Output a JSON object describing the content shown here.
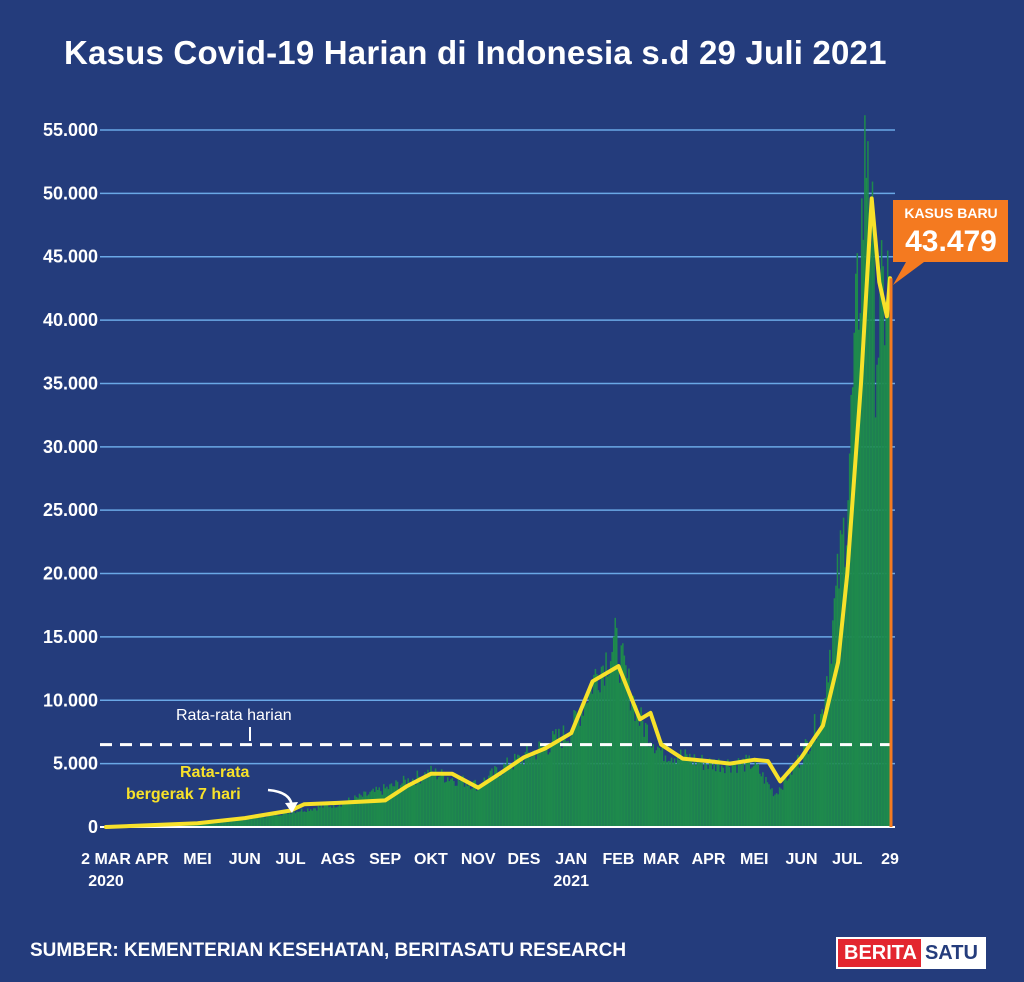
{
  "chart_data": {
    "type": "bar",
    "title": "Kasus Covid-19 Harian di Indonesia s.d 29 Juli 2021",
    "xlabel": "",
    "ylabel": "",
    "ylim": [
      0,
      55000
    ],
    "yticks": [
      "0",
      "5.000",
      "10.000",
      "15.000",
      "20.000",
      "25.000",
      "30.000",
      "35.000",
      "40.000",
      "45.000",
      "50.000",
      "55.000"
    ],
    "grid": true,
    "xticks": [
      {
        "label": "2 MAR",
        "sub": "2020",
        "date": "2020-03-02"
      },
      {
        "label": "APR",
        "sub": "",
        "date": "2020-04-01"
      },
      {
        "label": "MEI",
        "sub": "",
        "date": "2020-05-01"
      },
      {
        "label": "JUN",
        "sub": "",
        "date": "2020-06-01"
      },
      {
        "label": "JUL",
        "sub": "",
        "date": "2020-07-01"
      },
      {
        "label": "AGS",
        "sub": "",
        "date": "2020-08-01"
      },
      {
        "label": "SEP",
        "sub": "",
        "date": "2020-09-01"
      },
      {
        "label": "OKT",
        "sub": "",
        "date": "2020-10-01"
      },
      {
        "label": "NOV",
        "sub": "",
        "date": "2020-11-01"
      },
      {
        "label": "DES",
        "sub": "",
        "date": "2020-12-01"
      },
      {
        "label": "JAN",
        "sub": "2021",
        "date": "2021-01-01"
      },
      {
        "label": "FEB",
        "sub": "",
        "date": "2021-02-01"
      },
      {
        "label": "MAR",
        "sub": "",
        "date": "2021-03-01"
      },
      {
        "label": "APR",
        "sub": "",
        "date": "2021-04-01"
      },
      {
        "label": "MEI",
        "sub": "",
        "date": "2021-05-01"
      },
      {
        "label": "JUN",
        "sub": "",
        "date": "2021-06-01"
      },
      {
        "label": "JUL",
        "sub": "",
        "date": "2021-07-01"
      },
      {
        "label": "29",
        "sub": "",
        "date": "2021-07-29"
      }
    ],
    "x_range": [
      "2020-03-02",
      "2021-07-29"
    ],
    "series": [
      {
        "type": "bar",
        "note": "daily new cases, estimated at key dates",
        "points": [
          {
            "date": "2020-03-02",
            "y": 2
          },
          {
            "date": "2020-04-01",
            "y": 150
          },
          {
            "date": "2020-05-01",
            "y": 350
          },
          {
            "date": "2020-06-01",
            "y": 600
          },
          {
            "date": "2020-07-01",
            "y": 1200
          },
          {
            "date": "2020-08-01",
            "y": 1800
          },
          {
            "date": "2020-09-01",
            "y": 3000
          },
          {
            "date": "2020-10-01",
            "y": 4300
          },
          {
            "date": "2020-11-01",
            "y": 3300
          },
          {
            "date": "2020-11-15",
            "y": 4500
          },
          {
            "date": "2020-12-01",
            "y": 5500
          },
          {
            "date": "2021-01-01",
            "y": 7500
          },
          {
            "date": "2021-01-15",
            "y": 11500
          },
          {
            "date": "2021-01-30",
            "y": 14500
          },
          {
            "date": "2021-02-15",
            "y": 8500
          },
          {
            "date": "2021-03-01",
            "y": 6000
          },
          {
            "date": "2021-04-01",
            "y": 5000
          },
          {
            "date": "2021-05-01",
            "y": 5000
          },
          {
            "date": "2021-05-15",
            "y": 2600
          },
          {
            "date": "2021-06-01",
            "y": 5500
          },
          {
            "date": "2021-06-15",
            "y": 9000
          },
          {
            "date": "2021-07-01",
            "y": 25000
          },
          {
            "date": "2021-07-15",
            "y": 56000
          },
          {
            "date": "2021-07-20",
            "y": 38000
          },
          {
            "date": "2021-07-29",
            "y": 43479
          }
        ]
      },
      {
        "name": "Rata-rata bergerak 7 hari",
        "type": "line",
        "color": "#f7e12a",
        "points": [
          {
            "date": "2020-03-02",
            "y": 0
          },
          {
            "date": "2020-04-01",
            "y": 150
          },
          {
            "date": "2020-05-01",
            "y": 300
          },
          {
            "date": "2020-06-01",
            "y": 700
          },
          {
            "date": "2020-07-01",
            "y": 1300
          },
          {
            "date": "2020-07-10",
            "y": 1800
          },
          {
            "date": "2020-08-01",
            "y": 1900
          },
          {
            "date": "2020-09-01",
            "y": 2100
          },
          {
            "date": "2020-09-15",
            "y": 3200
          },
          {
            "date": "2020-10-01",
            "y": 4200
          },
          {
            "date": "2020-10-15",
            "y": 4200
          },
          {
            "date": "2020-11-01",
            "y": 3100
          },
          {
            "date": "2020-11-15",
            "y": 4200
          },
          {
            "date": "2020-12-01",
            "y": 5500
          },
          {
            "date": "2020-12-15",
            "y": 6200
          },
          {
            "date": "2021-01-01",
            "y": 7400
          },
          {
            "date": "2021-01-15",
            "y": 11500
          },
          {
            "date": "2021-02-01",
            "y": 12700
          },
          {
            "date": "2021-02-15",
            "y": 8500
          },
          {
            "date": "2021-02-22",
            "y": 9000
          },
          {
            "date": "2021-03-01",
            "y": 6500
          },
          {
            "date": "2021-03-15",
            "y": 5400
          },
          {
            "date": "2021-04-01",
            "y": 5200
          },
          {
            "date": "2021-04-15",
            "y": 5000
          },
          {
            "date": "2021-05-01",
            "y": 5300
          },
          {
            "date": "2021-05-10",
            "y": 5200
          },
          {
            "date": "2021-05-18",
            "y": 3600
          },
          {
            "date": "2021-06-01",
            "y": 5500
          },
          {
            "date": "2021-06-15",
            "y": 8000
          },
          {
            "date": "2021-06-25",
            "y": 13000
          },
          {
            "date": "2021-07-01",
            "y": 20000
          },
          {
            "date": "2021-07-10",
            "y": 35000
          },
          {
            "date": "2021-07-17",
            "y": 49600
          },
          {
            "date": "2021-07-22",
            "y": 43000
          },
          {
            "date": "2021-07-27",
            "y": 40300
          },
          {
            "date": "2021-07-29",
            "y": 43300
          }
        ]
      }
    ],
    "reference_line": {
      "label": "Rata-rata harian",
      "y": 6500
    },
    "annotations": {
      "moving_average_label_line1": "Rata-rata",
      "moving_average_label_line2": "bergerak 7 hari"
    },
    "callout": {
      "label": "KASUS BARU",
      "value": "43.479",
      "color": "#f47a20"
    }
  },
  "footer": {
    "source": "SUMBER: KEMENTERIAN KESEHATAN, BERITASATU RESEARCH",
    "logo_part1": "BERITA",
    "logo_part2": "SATU"
  },
  "colors": {
    "background": "#243c7c",
    "gridline": "#6aa8e6",
    "bar": "#1e8a4c",
    "moving_average": "#f7e12a",
    "callout": "#f47a20"
  }
}
